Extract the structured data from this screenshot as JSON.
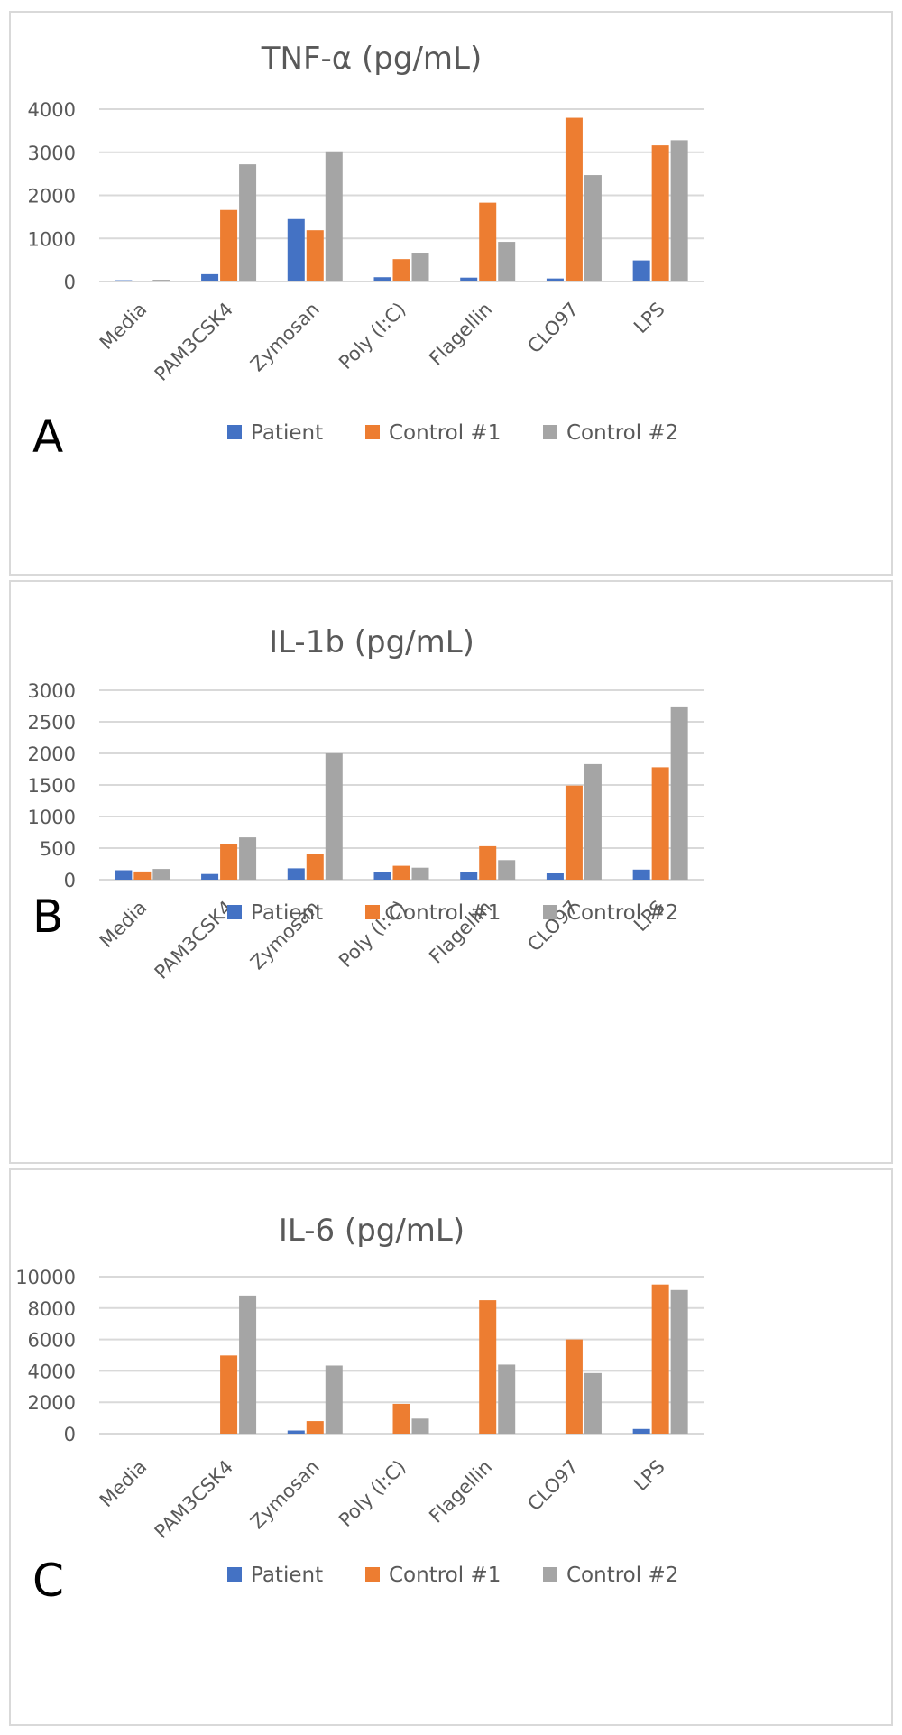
{
  "colors": {
    "patient": "#4472c4",
    "control1": "#ed7d31",
    "control2": "#a5a5a5",
    "grid": "#d9d9d9",
    "text": "#595959"
  },
  "legend": [
    {
      "label": "Patient",
      "color": "#4472c4"
    },
    {
      "label": "Control #1",
      "color": "#ed7d31"
    },
    {
      "label": "Control #2",
      "color": "#a5a5a5"
    }
  ],
  "chart_data": [
    {
      "type": "bar",
      "panel_label": "A",
      "title": "TNF-α (pg/mL)",
      "categories": [
        "Media",
        "PAM3CSK4",
        "Zymosan",
        "Poly (I:C)",
        "Flagellin",
        "CLO97",
        "LPS"
      ],
      "yticks": [
        0,
        1000,
        2000,
        3000,
        4000
      ],
      "ylim": [
        0,
        4000
      ],
      "grid": true,
      "legend_position": "bottom",
      "series": [
        {
          "name": "Patient",
          "values": [
            30,
            170,
            1450,
            100,
            90,
            70,
            490
          ]
        },
        {
          "name": "Control #1",
          "values": [
            20,
            1660,
            1190,
            520,
            1830,
            3800,
            3160
          ]
        },
        {
          "name": "Control #2",
          "values": [
            40,
            2720,
            3020,
            670,
            920,
            2470,
            3280
          ]
        }
      ]
    },
    {
      "type": "bar",
      "panel_label": "B",
      "title": "IL-1b (pg/mL)",
      "categories": [
        "Media",
        "PAM3CSK4",
        "Zymosan",
        "Poly (I:C)",
        "Flagellin",
        "CLO97",
        "LPS"
      ],
      "yticks": [
        0,
        500,
        1000,
        1500,
        2000,
        2500,
        3000
      ],
      "ylim": [
        0,
        3000
      ],
      "grid": true,
      "legend_position": "bottom",
      "series": [
        {
          "name": "Patient",
          "values": [
            150,
            90,
            180,
            120,
            120,
            100,
            160
          ]
        },
        {
          "name": "Control #1",
          "values": [
            130,
            560,
            400,
            220,
            530,
            1490,
            1780
          ]
        },
        {
          "name": "Control #2",
          "values": [
            170,
            670,
            2000,
            190,
            310,
            1830,
            2730
          ]
        }
      ]
    },
    {
      "type": "bar",
      "panel_label": "C",
      "title": "IL-6 (pg/mL)",
      "categories": [
        "Media",
        "PAM3CSK4",
        "Zymosan",
        "Poly (I:C)",
        "Flagellin",
        "CLO97",
        "LPS"
      ],
      "yticks": [
        0,
        2000,
        4000,
        6000,
        8000,
        10000
      ],
      "ylim": [
        0,
        10000
      ],
      "grid": true,
      "legend_position": "bottom",
      "series": [
        {
          "name": "Patient",
          "values": [
            0,
            0,
            200,
            0,
            0,
            0,
            300
          ]
        },
        {
          "name": "Control #1",
          "values": [
            0,
            4980,
            800,
            1900,
            8500,
            6000,
            9500
          ]
        },
        {
          "name": "Control #2",
          "values": [
            0,
            8800,
            4340,
            960,
            4400,
            3860,
            9150
          ]
        }
      ]
    }
  ]
}
